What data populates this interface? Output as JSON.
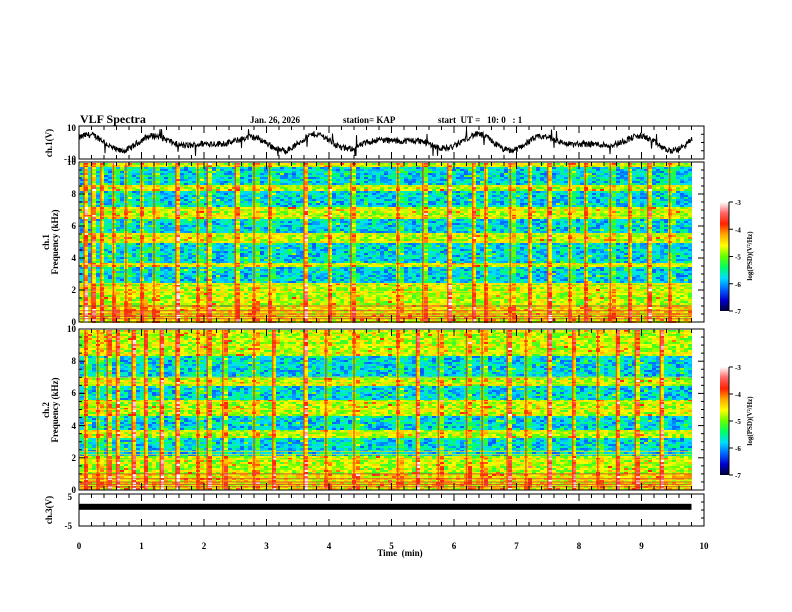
{
  "chart_data": {
    "type": "heatmap",
    "title": "VLF Spectra",
    "date": "Jan. 26, 2026",
    "station": "station= KAP",
    "start_time": "start  UT =   10: 0   : 1",
    "xlabel": "Time  (min)",
    "xlim": [
      0,
      10
    ],
    "x_ticks": [
      "0",
      "1",
      "2",
      "3",
      "4",
      "5",
      "6",
      "7",
      "8",
      "9",
      "10"
    ],
    "data_end_min": 9.8,
    "panels": [
      {
        "id": "ch1-waveform",
        "type": "line",
        "ylabel": "ch.1(V)",
        "ylim": [
          -10,
          10
        ],
        "y_ticks": [
          "10",
          "-10"
        ]
      },
      {
        "id": "ch1-spectrogram",
        "type": "heatmap",
        "ylabel_line1": "ch.1",
        "ylabel_line2": "Frequency  (kHz)",
        "ylim": [
          0,
          10
        ],
        "y_ticks": [
          "0",
          "2",
          "4",
          "6",
          "8",
          "10"
        ],
        "colorbar": {
          "label": "log(PSD)(V²/Hz)",
          "range": [
            -7,
            -3
          ],
          "ticks": [
            "-3",
            "-4",
            "-5",
            "-6",
            "-7"
          ]
        },
        "quiet_bands_khz": [
          [
            2.5,
            3.5
          ],
          [
            3.8,
            5.0
          ],
          [
            5.6,
            6.5
          ],
          [
            7.2,
            8.3
          ],
          [
            8.6,
            9.8
          ]
        ],
        "spherics_min": [
          0.08,
          0.2,
          0.35,
          0.55,
          0.75,
          1.0,
          1.2,
          1.55,
          1.9,
          2.05,
          2.5,
          2.8,
          3.05,
          3.6,
          4.0,
          4.35,
          5.1,
          5.5,
          5.9,
          6.3,
          6.5,
          6.9,
          7.2,
          7.5,
          7.85,
          8.1,
          8.5,
          8.8,
          9.1,
          9.45
        ]
      },
      {
        "id": "ch2-spectrogram",
        "type": "heatmap",
        "ylabel_line1": "ch.2",
        "ylabel_line2": "Frequency  (kHz)",
        "ylim": [
          0,
          10
        ],
        "y_ticks": [
          "0",
          "2",
          "4",
          "6",
          "8",
          "10"
        ],
        "colorbar": {
          "label": "log(PSD)(V²/Hz)",
          "range": [
            -7,
            -3
          ],
          "ticks": [
            "-3",
            "-4",
            "-5",
            "-6",
            "-7"
          ]
        },
        "quiet_bands_khz": [
          [
            2.2,
            3.3
          ],
          [
            3.8,
            4.7
          ],
          [
            5.6,
            6.5
          ],
          [
            7.0,
            8.4
          ]
        ],
        "spherics_min": [
          0.1,
          0.3,
          0.45,
          0.6,
          0.85,
          1.05,
          1.3,
          1.55,
          1.9,
          2.05,
          2.3,
          2.8,
          3.1,
          3.6,
          3.95,
          4.4,
          5.1,
          5.4,
          5.75,
          6.2,
          6.45,
          6.85,
          7.15,
          7.5,
          7.9,
          8.3,
          8.6,
          8.9,
          9.3
        ]
      },
      {
        "id": "ch3-waveform",
        "type": "line",
        "ylabel": "ch.3(V)",
        "ylim": [
          -5,
          5
        ],
        "y_ticks": [
          "5",
          "-5"
        ],
        "level_v": 1.0
      }
    ]
  },
  "colors": {
    "axis": "#000000",
    "trace": "#000000",
    "colormap": [
      "#000033",
      "#0000cc",
      "#0066ff",
      "#00ddff",
      "#00ff66",
      "#66ff00",
      "#ffff00",
      "#ffaa00",
      "#ff2200",
      "#ff6666",
      "#ffffff"
    ]
  }
}
